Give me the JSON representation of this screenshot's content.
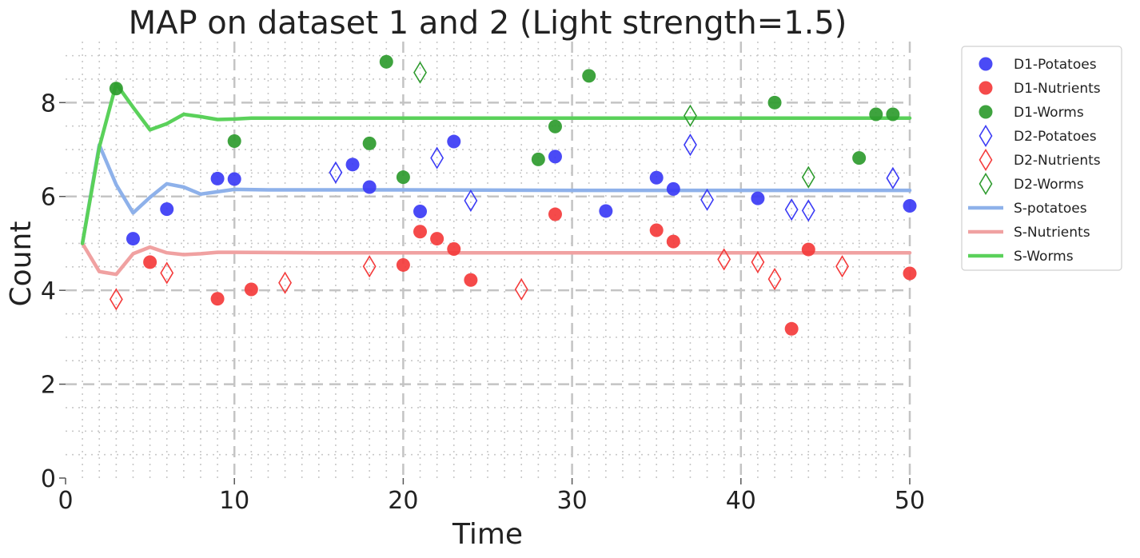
{
  "chart_data": {
    "type": "scatter",
    "title": "MAP on dataset 1 and 2 (Light strength=1.5)",
    "xlabel": "Time",
    "ylabel": "Count",
    "xlim": [
      0,
      50
    ],
    "ylim": [
      0,
      9.3
    ],
    "xticks": [
      0,
      10,
      20,
      30,
      40,
      50
    ],
    "yticks": [
      0,
      2,
      4,
      6,
      8
    ],
    "grid": true,
    "legend_position": "outside-right",
    "scatter_series": [
      {
        "name": "D1-Potatoes",
        "marker": "circle",
        "color": "#3b3bf5",
        "filled": true,
        "x": [
          4,
          6,
          9,
          10,
          17,
          18,
          21,
          23,
          29,
          32,
          35,
          36,
          41,
          50
        ],
        "y": [
          5.1,
          5.73,
          6.38,
          6.37,
          6.68,
          6.2,
          5.68,
          7.17,
          6.85,
          5.69,
          6.4,
          6.16,
          5.96,
          5.8
        ]
      },
      {
        "name": "D1-Nutrients",
        "marker": "circle",
        "color": "#f43b3b",
        "filled": true,
        "x": [
          5,
          9,
          11,
          20,
          21,
          22,
          23,
          24,
          29,
          35,
          36,
          43,
          44,
          50
        ],
        "y": [
          4.6,
          3.82,
          4.02,
          4.54,
          5.25,
          5.1,
          4.88,
          4.22,
          5.62,
          5.28,
          5.04,
          3.18,
          4.87,
          4.36
        ]
      },
      {
        "name": "D1-Worms",
        "marker": "circle",
        "color": "#2e9b2e",
        "filled": true,
        "x": [
          3,
          10,
          18,
          19,
          20,
          28,
          29,
          31,
          42,
          47,
          48,
          49
        ],
        "y": [
          8.3,
          7.18,
          7.13,
          8.87,
          6.41,
          6.79,
          7.49,
          8.57,
          8.0,
          6.82,
          7.75,
          7.75
        ]
      },
      {
        "name": "D2-Potatoes",
        "marker": "diamond",
        "color": "#3b3bf5",
        "filled": false,
        "x": [
          16,
          22,
          24,
          37,
          38,
          43,
          44,
          49
        ],
        "y": [
          6.51,
          6.82,
          5.91,
          7.1,
          5.93,
          5.72,
          5.7,
          6.39
        ]
      },
      {
        "name": "D2-Nutrients",
        "marker": "diamond",
        "color": "#f43b3b",
        "filled": false,
        "x": [
          3,
          6,
          13,
          18,
          27,
          39,
          41,
          42,
          46
        ],
        "y": [
          3.81,
          4.37,
          4.16,
          4.51,
          4.02,
          4.66,
          4.6,
          4.24,
          4.51
        ]
      },
      {
        "name": "D2-Worms",
        "marker": "diamond",
        "color": "#2e9b2e",
        "filled": false,
        "x": [
          21,
          37,
          44
        ],
        "y": [
          8.64,
          7.72,
          6.41
        ]
      }
    ],
    "line_series": [
      {
        "name": "S-potatoes",
        "color": "#8eb1ea",
        "x": [
          1,
          2,
          3,
          4,
          5,
          6,
          7,
          8,
          9,
          10,
          12,
          15,
          20,
          30,
          40,
          50
        ],
        "y": [
          5.0,
          7.1,
          6.25,
          5.65,
          5.98,
          6.27,
          6.2,
          6.05,
          6.1,
          6.15,
          6.14,
          6.14,
          6.14,
          6.13,
          6.13,
          6.13
        ]
      },
      {
        "name": "S-Nutrients",
        "color": "#f0a1a1",
        "x": [
          1,
          2,
          3,
          4,
          5,
          6,
          7,
          8,
          9,
          10,
          15,
          20,
          30,
          40,
          50
        ],
        "y": [
          5.0,
          4.4,
          4.34,
          4.78,
          4.92,
          4.8,
          4.76,
          4.78,
          4.81,
          4.81,
          4.8,
          4.8,
          4.8,
          4.8,
          4.8
        ]
      },
      {
        "name": "S-Worms",
        "color": "#5ad15a",
        "x": [
          1,
          2,
          3,
          4,
          5,
          6,
          7,
          8,
          9,
          10,
          11,
          15,
          20,
          30,
          40,
          50
        ],
        "y": [
          5.0,
          7.05,
          8.4,
          7.9,
          7.42,
          7.55,
          7.75,
          7.7,
          7.64,
          7.65,
          7.67,
          7.67,
          7.67,
          7.67,
          7.67,
          7.67
        ]
      }
    ]
  }
}
